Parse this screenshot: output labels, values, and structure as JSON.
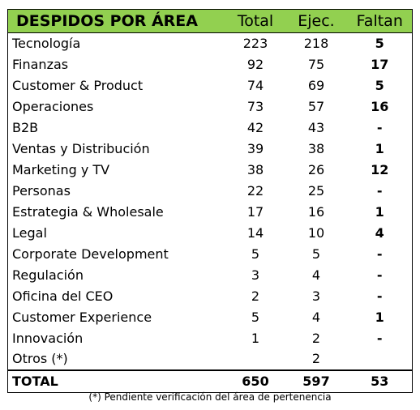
{
  "table": {
    "headers": {
      "area": "DESPIDOS POR ÁREA",
      "total": "Total",
      "ejecutados": "Ejec.",
      "faltan": "Faltan"
    },
    "rows": [
      {
        "area": "Tecnología",
        "total": "223",
        "ejecutados": "218",
        "faltan": "5"
      },
      {
        "area": "Finanzas",
        "total": "92",
        "ejecutados": "75",
        "faltan": "17"
      },
      {
        "area": "Customer & Product",
        "total": "74",
        "ejecutados": "69",
        "faltan": "5"
      },
      {
        "area": "Operaciones",
        "total": "73",
        "ejecutados": "57",
        "faltan": "16"
      },
      {
        "area": "B2B",
        "total": "42",
        "ejecutados": "43",
        "faltan": "-"
      },
      {
        "area": "Ventas y Distribución",
        "total": "39",
        "ejecutados": "38",
        "faltan": "1"
      },
      {
        "area": "Marketing y TV",
        "total": "38",
        "ejecutados": "26",
        "faltan": "12"
      },
      {
        "area": "Personas",
        "total": "22",
        "ejecutados": "25",
        "faltan": "-"
      },
      {
        "area": "Estrategia & Wholesale",
        "total": "17",
        "ejecutados": "16",
        "faltan": "1"
      },
      {
        "area": "Legal",
        "total": "14",
        "ejecutados": "10",
        "faltan": "4"
      },
      {
        "area": "Corporate Development",
        "total": "5",
        "ejecutados": "5",
        "faltan": "-"
      },
      {
        "area": "Regulación",
        "total": "3",
        "ejecutados": "4",
        "faltan": "-"
      },
      {
        "area": "Oficina del CEO",
        "total": "2",
        "ejecutados": "3",
        "faltan": "-"
      },
      {
        "area": "Customer Experience",
        "total": "5",
        "ejecutados": "4",
        "faltan": "1"
      },
      {
        "area": "Innovación",
        "total": "1",
        "ejecutados": "2",
        "faltan": "-"
      },
      {
        "area": "Otros (*)",
        "total": "",
        "ejecutados": "2",
        "faltan": ""
      }
    ],
    "totals": {
      "label": "TOTAL",
      "total": "650",
      "ejecutados": "597",
      "faltan": "53"
    }
  },
  "footnote": "(*) Pendiente verificación del área de pertenencia",
  "colors": {
    "header_background": "#92d050",
    "text": "#000000",
    "border": "#000000"
  }
}
